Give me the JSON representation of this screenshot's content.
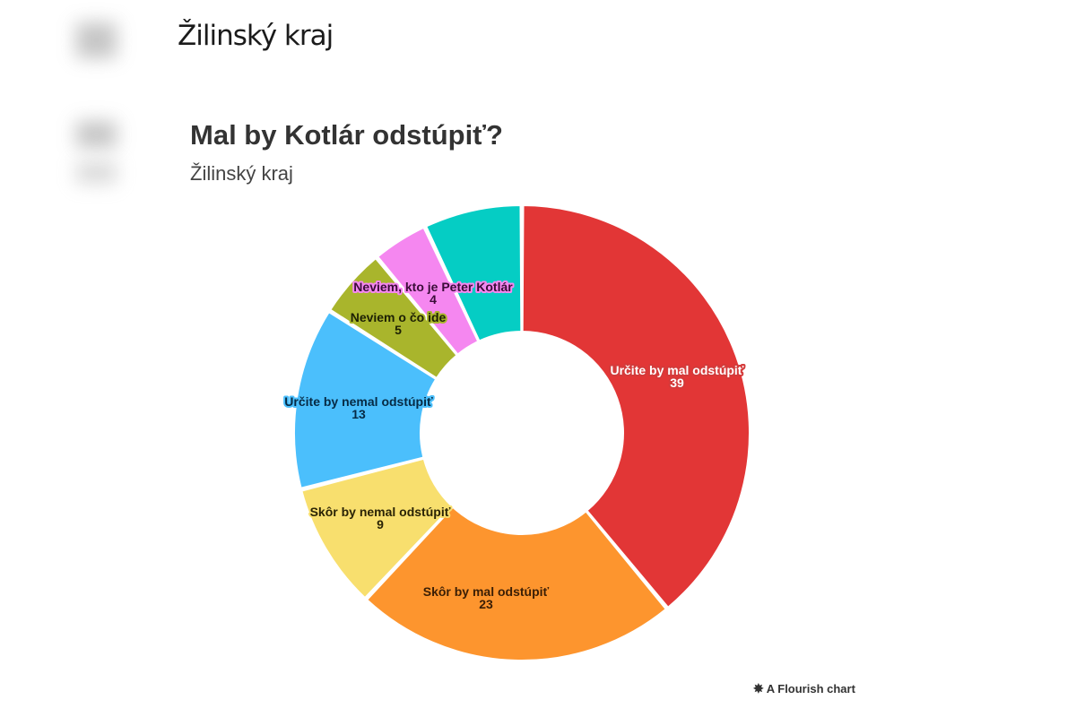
{
  "header": {
    "title": "Žilinský kraj"
  },
  "chart": {
    "title": "Mal by Kotlár odstúpiť?",
    "subtitle": "Žilinský kraj"
  },
  "footer": {
    "icon": "flourish-star-icon",
    "text": "A Flourish chart",
    "glyph": "✸"
  },
  "chart_data": {
    "type": "pie",
    "variant": "donut",
    "title": "Mal by Kotlár odstúpiť?",
    "subtitle": "Žilinský kraj",
    "categories": [
      "Určite by mal odstúpiť",
      "Skôr by mal odstúpiť",
      "Skôr by nemal odstúpiť",
      "Určite by nemal odstúpiť",
      "Neviem o čo ide",
      "Neviem, kto je Peter Kotlár",
      ""
    ],
    "values": [
      39,
      23,
      9,
      13,
      5,
      4,
      7
    ],
    "colors": [
      "#e23636",
      "#fd952e",
      "#f8df6e",
      "#4bbffc",
      "#a9b52c",
      "#f587f0",
      "#05cdc4"
    ],
    "labels_shown": [
      true,
      true,
      true,
      true,
      true,
      true,
      false
    ],
    "legend": "none"
  }
}
